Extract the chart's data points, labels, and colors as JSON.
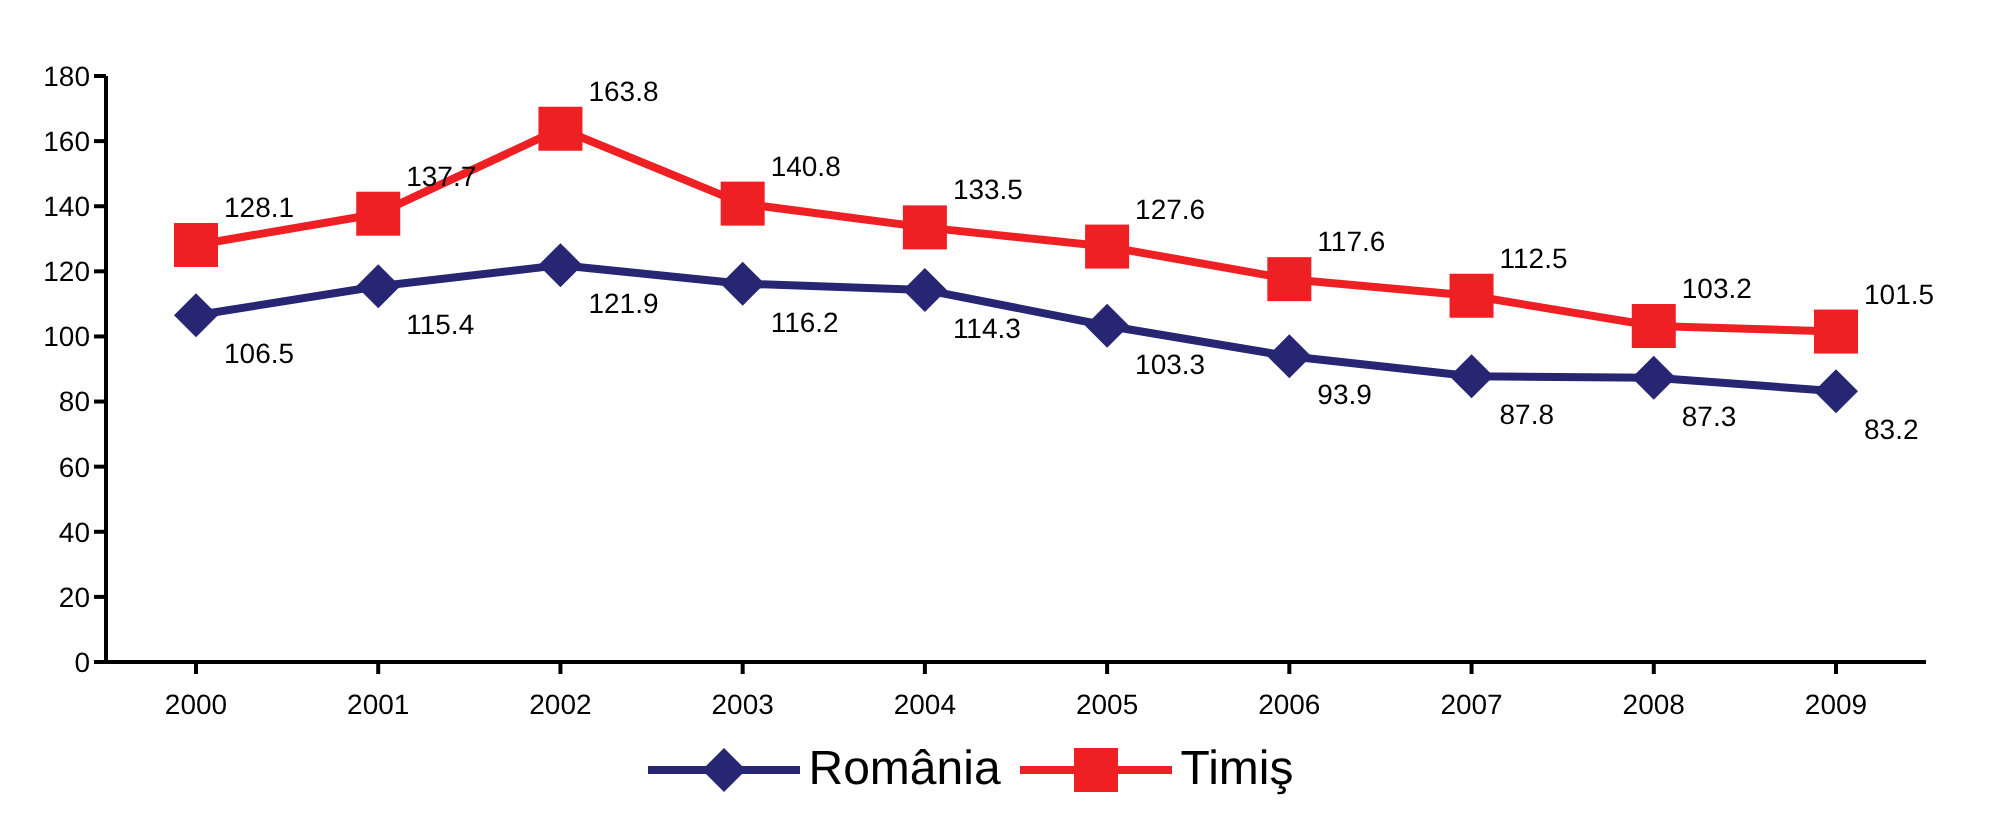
{
  "chart_data": {
    "type": "line",
    "categories": [
      "2000",
      "2001",
      "2002",
      "2003",
      "2004",
      "2005",
      "2006",
      "2007",
      "2008",
      "2009"
    ],
    "series": [
      {
        "name": "România",
        "color": "#262673",
        "marker": "diamond",
        "values": [
          106.5,
          115.4,
          121.9,
          116.2,
          114.3,
          103.3,
          93.9,
          87.8,
          87.3,
          83.2
        ]
      },
      {
        "name": "Timiş",
        "color": "#ee2024",
        "marker": "square",
        "values": [
          128.1,
          137.7,
          163.8,
          140.8,
          133.5,
          127.6,
          117.6,
          112.5,
          103.2,
          101.5
        ]
      }
    ],
    "ylim": [
      0,
      180
    ],
    "yticks": [
      0,
      20,
      40,
      60,
      80,
      100,
      120,
      140,
      160,
      180
    ],
    "grid": false,
    "legend": "bottom",
    "data_labels": true
  }
}
